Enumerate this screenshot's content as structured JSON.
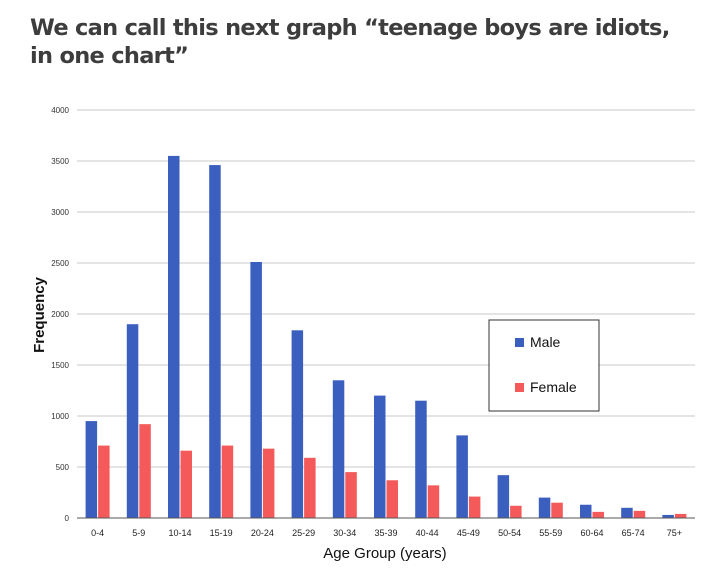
{
  "headline": "We can call this next graph “teenage boys are idiots, in one chart”",
  "chart_data": {
    "type": "bar",
    "title": "",
    "xlabel": "Age Group (years)",
    "ylabel": "Frequency",
    "ylim": [
      0,
      4000
    ],
    "yticks": [
      0,
      500,
      1000,
      1500,
      2000,
      2500,
      3000,
      3500,
      4000
    ],
    "grid": true,
    "legend_position": "right",
    "categories": [
      "0-4",
      "5-9",
      "10-14",
      "15-19",
      "20-24",
      "25-29",
      "30-34",
      "35-39",
      "40-44",
      "45-49",
      "50-54",
      "55-59",
      "60-64",
      "65-74",
      "75+"
    ],
    "series": [
      {
        "name": "Male",
        "color": "#3a5fbf",
        "values": [
          950,
          1900,
          3550,
          3460,
          2510,
          1840,
          1350,
          1200,
          1150,
          810,
          420,
          200,
          130,
          100,
          30
        ]
      },
      {
        "name": "Female",
        "color": "#f45a5a",
        "values": [
          710,
          920,
          660,
          710,
          680,
          590,
          450,
          370,
          320,
          210,
          120,
          150,
          60,
          70,
          40
        ]
      }
    ]
  }
}
